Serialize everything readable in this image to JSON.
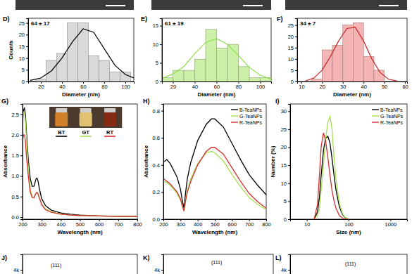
{
  "chart_data": [
    {
      "type": "histogram",
      "title": "D)",
      "annotations": [
        "64 ± 17"
      ],
      "x_label": "Diameter (nm)",
      "y_label": "Counts",
      "bins": [
        15,
        25,
        35,
        45,
        55,
        65,
        75,
        85,
        95,
        105
      ],
      "values": [
        1,
        9,
        12,
        25,
        25,
        11,
        9,
        4,
        4
      ],
      "color": "#d9d9d9",
      "xlim": [
        8,
        108
      ],
      "xticks": [
        20,
        40,
        60,
        80,
        100
      ],
      "ylim": [
        0,
        27
      ],
      "yticks": [
        0,
        5,
        10,
        15,
        20,
        25
      ],
      "series": [
        {
          "type": "line",
          "color": "#000000",
          "x": [
            10,
            20,
            30,
            40,
            50,
            60,
            70,
            80,
            90,
            100,
            108
          ],
          "values": [
            0.5,
            1.5,
            4.5,
            10,
            17,
            22.5,
            21,
            14,
            7,
            3,
            1.5
          ]
        }
      ]
    },
    {
      "type": "histogram",
      "title": "E)",
      "annotations": [
        "61 ± 19"
      ],
      "x_label": "Diameter (nm)",
      "bins": [
        10,
        20,
        30,
        40,
        50,
        60,
        70,
        80,
        90,
        100,
        110
      ],
      "values": [
        1,
        3,
        3,
        6,
        14,
        9,
        10,
        4,
        1,
        1
      ],
      "color": "#ccf0a8",
      "xlim": [
        10,
        110
      ],
      "xticks": [
        20,
        40,
        60,
        80,
        100
      ],
      "ylim": [
        0,
        17
      ],
      "yticks": [
        0,
        5,
        10,
        15
      ],
      "series": [
        {
          "type": "line",
          "color": "#8fdc4a",
          "x": [
            10,
            20,
            30,
            40,
            50,
            60,
            70,
            80,
            90,
            100,
            110
          ],
          "values": [
            0.8,
            2,
            4,
            7.5,
            10.5,
            11.5,
            10,
            7,
            3.8,
            1.7,
            0.6
          ]
        }
      ]
    },
    {
      "type": "histogram",
      "title": "F)",
      "annotations": [
        "34 ± 7"
      ],
      "x_label": "Diameter (nm)",
      "bins": [
        15,
        20,
        25,
        30,
        35,
        40,
        45,
        50
      ],
      "values": [
        1,
        14,
        16,
        25,
        26,
        11,
        5
      ],
      "color": "#f5b5b5",
      "xlim": [
        8,
        61
      ],
      "xticks": [
        10,
        20,
        30,
        40,
        50,
        60
      ],
      "ylim": [
        0,
        28
      ],
      "yticks": [
        0,
        5,
        10,
        15,
        20,
        25
      ],
      "series": [
        {
          "type": "line",
          "color": "#c62828",
          "x": [
            12,
            16,
            20,
            24,
            28,
            32,
            36,
            40,
            44,
            48,
            52,
            56
          ],
          "values": [
            0.3,
            1.5,
            5,
            11,
            18,
            23.5,
            24,
            18,
            10,
            4,
            1,
            0.3
          ]
        }
      ]
    },
    {
      "type": "line",
      "title": "G)",
      "x_label": "Wavelength (nm)",
      "y_label": "Absorbance",
      "legend": "top",
      "x": [
        200,
        205,
        210,
        215,
        220,
        230,
        240,
        250,
        260,
        270,
        275,
        280,
        290,
        300,
        320,
        350,
        400,
        450,
        500,
        600,
        700,
        800
      ],
      "xlim": [
        200,
        800
      ],
      "xticks": [
        200,
        300,
        400,
        500,
        600,
        700,
        800
      ],
      "ylim": [
        -0.05,
        2.75
      ],
      "yticks": [
        {
          "value": 0,
          "label": "0.0"
        },
        0.5,
        {
          "value": 1,
          "label": "1.0"
        },
        1.5,
        {
          "value": 2,
          "label": "2.0"
        },
        2.5
      ],
      "series": [
        {
          "name": "BT",
          "color": "#000000",
          "values": [
            2.35,
            2.6,
            2.65,
            2.5,
            2.1,
            1.4,
            0.95,
            0.75,
            0.75,
            0.92,
            0.95,
            0.9,
            0.65,
            0.45,
            0.28,
            0.17,
            0.1,
            0.07,
            0.05,
            0.03,
            0.02,
            0.02
          ]
        },
        {
          "name": "GT",
          "color": "#a6e04f",
          "values": [
            2.2,
            2.55,
            2.55,
            2.35,
            1.95,
            1.2,
            0.7,
            0.5,
            0.48,
            0.58,
            0.6,
            0.57,
            0.45,
            0.32,
            0.2,
            0.13,
            0.08,
            0.05,
            0.04,
            0.03,
            0.02,
            0.02
          ]
        },
        {
          "name": "RT",
          "color": "#d62f2f",
          "values": [
            1.85,
            2.0,
            2.0,
            1.85,
            1.5,
            1.0,
            0.62,
            0.48,
            0.47,
            0.58,
            0.6,
            0.58,
            0.44,
            0.3,
            0.18,
            0.12,
            0.07,
            0.05,
            0.04,
            0.03,
            0.02,
            0.02
          ]
        }
      ]
    },
    {
      "type": "line",
      "title": "H)",
      "x_label": "Wavelength (nm)",
      "y_label": "Absorbance",
      "legend": "upper right",
      "x": [
        200,
        220,
        240,
        260,
        280,
        300,
        310,
        320,
        330,
        340,
        360,
        400,
        450,
        480,
        500,
        550,
        600,
        650,
        700,
        750,
        800
      ],
      "xlim": [
        200,
        800
      ],
      "xticks": [
        200,
        300,
        400,
        500,
        600,
        700,
        800
      ],
      "ylim": [
        0,
        0.85
      ],
      "yticks": [
        {
          "value": 0,
          "label": "0.0"
        },
        0.2,
        0.4,
        0.6,
        0.8
      ],
      "series": [
        {
          "name": "B-TeaNPs",
          "color": "#000000",
          "values": [
            0.42,
            0.44,
            0.41,
            0.36,
            0.31,
            0.22,
            0.14,
            0.08,
            0.2,
            0.3,
            0.42,
            0.58,
            0.7,
            0.74,
            0.74,
            0.68,
            0.56,
            0.44,
            0.33,
            0.25,
            0.18
          ]
        },
        {
          "name": "G-TeaNPs",
          "color": "#a6e04f",
          "values": [
            0.28,
            0.27,
            0.25,
            0.22,
            0.19,
            0.14,
            0.1,
            0.06,
            0.14,
            0.21,
            0.3,
            0.41,
            0.49,
            0.5,
            0.49,
            0.43,
            0.33,
            0.24,
            0.16,
            0.11,
            0.07
          ]
        },
        {
          "name": "R-TeaNPs",
          "color": "#d62f2f",
          "values": [
            0.3,
            0.28,
            0.26,
            0.23,
            0.2,
            0.15,
            0.1,
            0.06,
            0.14,
            0.2,
            0.28,
            0.4,
            0.5,
            0.53,
            0.53,
            0.48,
            0.38,
            0.28,
            0.19,
            0.13,
            0.08
          ]
        }
      ]
    },
    {
      "type": "line",
      "title": "I)",
      "x_label": "Size (nm)",
      "y_label": "Number (%)",
      "legend": "upper right",
      "log": "x",
      "x": [
        15,
        18,
        20,
        22,
        25,
        28,
        32,
        36,
        40,
        45,
        50,
        60,
        70,
        80,
        100
      ],
      "xlim": [
        4,
        2500
      ],
      "xticks": [
        10,
        100,
        1000
      ],
      "ylim": [
        0,
        32
      ],
      "yticks": [
        0,
        5,
        10,
        15,
        20,
        25,
        30
      ],
      "series": [
        {
          "name": "B-TeaNPs",
          "color": "#000000",
          "values": [
            0,
            2,
            6,
            12,
            19,
            22.5,
            23,
            21,
            17,
            12,
            8,
            3.5,
            1.5,
            0.5,
            0
          ]
        },
        {
          "name": "G-TeaNPs",
          "color": "#a6e04f",
          "values": [
            0,
            1,
            3,
            8,
            15,
            22,
            27,
            28.5,
            25,
            17,
            11,
            4.5,
            1.8,
            0.6,
            0
          ]
        },
        {
          "name": "R-TeaNPs",
          "color": "#d62f2f",
          "values": [
            0,
            4,
            12,
            20,
            24,
            22,
            17,
            12,
            8,
            5,
            3,
            1,
            0.4,
            0,
            0
          ]
        }
      ]
    },
    {
      "type": "line",
      "title": "J)",
      "annotations": [
        "(111)"
      ],
      "ylim": [
        0,
        4500
      ],
      "yticks": [
        {
          "value": 4000,
          "label": "4k"
        }
      ]
    },
    {
      "type": "line",
      "title": "K)",
      "annotations": [
        "(111)"
      ],
      "ylim": [
        0,
        4500
      ],
      "yticks": [
        {
          "value": 4000,
          "label": "4k"
        }
      ]
    },
    {
      "type": "line",
      "title": "L)",
      "annotations": [
        "(111)"
      ],
      "ylim": [
        0,
        4500
      ],
      "yticks": [
        {
          "value": 4000,
          "label": "4k"
        }
      ]
    }
  ]
}
